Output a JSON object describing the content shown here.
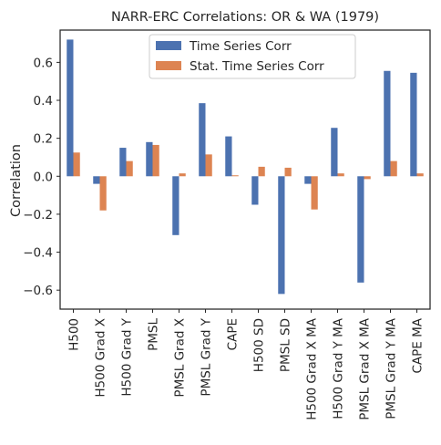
{
  "chart_data": {
    "type": "bar",
    "title": "NARR-ERC Correlations: OR & WA (1979)",
    "xlabel": "",
    "ylabel": "Correlation",
    "ylim": [
      -0.7,
      0.77
    ],
    "yticks": [
      -0.6,
      -0.4,
      -0.2,
      0.0,
      0.2,
      0.4,
      0.6
    ],
    "ytick_labels": [
      "−0.6",
      "−0.4",
      "−0.2",
      "0.0",
      "0.2",
      "0.4",
      "0.6"
    ],
    "categories": [
      "H500",
      "H500 Grad X",
      "H500 Grad Y",
      "PMSL",
      "PMSL Grad X",
      "PMSL Grad Y",
      "CAPE",
      "H500 SD",
      "PMSL SD",
      "H500 Grad X MA",
      "H500 Grad Y MA",
      "PMSL Grad X MA",
      "PMSL Grad Y MA",
      "CAPE MA"
    ],
    "series": [
      {
        "name": "Time Series Corr",
        "color": "#4c72b0",
        "values": [
          0.72,
          -0.04,
          0.15,
          0.18,
          -0.31,
          0.385,
          0.21,
          -0.15,
          -0.62,
          -0.04,
          0.255,
          -0.56,
          0.555,
          0.545
        ]
      },
      {
        "name": "Stat. Time Series Corr",
        "color": "#dd8452",
        "values": [
          0.125,
          -0.18,
          0.08,
          0.165,
          0.015,
          0.115,
          0.005,
          0.05,
          0.045,
          -0.175,
          0.015,
          -0.015,
          0.08,
          0.015
        ]
      }
    ],
    "grid": false,
    "legend_position": "top-center"
  }
}
